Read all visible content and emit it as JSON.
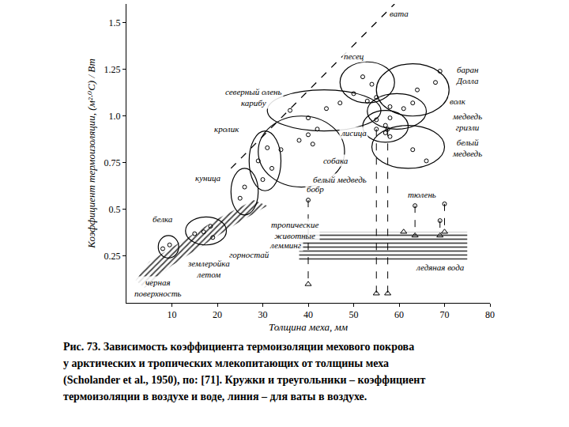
{
  "chart_data": {
    "type": "scatter",
    "x_label": "Толщина меха, мм",
    "y_label": "Коэффициент термоизоляции, (м²·⁰C) / Вт",
    "xlim": [
      0,
      80
    ],
    "ylim": [
      0,
      1.6
    ],
    "xticks": [
      10,
      20,
      30,
      40,
      50,
      60,
      70,
      80
    ],
    "yticks": [
      0.25,
      0.5,
      0.75,
      {
        "value": 1,
        "label": "1.0"
      },
      1.25,
      1.5
    ],
    "grid": false,
    "series": [
      {
        "marker": "circle",
        "color": "#000000",
        "x": [
          8,
          9.5,
          15,
          17,
          18.5,
          19,
          25,
          26,
          29,
          31,
          32,
          30,
          34,
          38,
          40,
          42,
          41,
          36,
          40,
          44,
          47,
          53,
          50,
          52,
          54,
          55,
          58,
          64,
          68,
          69,
          58,
          61,
          63,
          55,
          57,
          57,
          58,
          63,
          66,
          40,
          55,
          57.5,
          63.5,
          69,
          70
        ],
        "y": [
          0.29,
          0.31,
          0.37,
          0.38,
          0.41,
          0.35,
          0.56,
          0.62,
          0.76,
          0.83,
          0.72,
          0.66,
          0.82,
          0.87,
          0.9,
          0.93,
          0.85,
          1.03,
          0.99,
          1.04,
          1.07,
          1.08,
          1.12,
          1.21,
          1.17,
          1.1,
          1.05,
          1.14,
          1.18,
          1.24,
          0.99,
          1.04,
          1.07,
          0.98,
          0.95,
          0.91,
          0.89,
          0.82,
          0.76,
          0.55,
          0.93,
          0.93,
          0.52,
          0.44,
          0.53
        ]
      },
      {
        "marker": "triangle-up",
        "color": "#000000",
        "x": [
          40,
          55,
          57.5,
          61,
          63.5,
          69,
          70
        ],
        "y": [
          0.1,
          0.05,
          0.05,
          0.38,
          0.36,
          0.36,
          0.38
        ]
      }
    ],
    "line": {
      "line_style": "dash",
      "color": "#000000",
      "x": [
        23,
        59
      ],
      "y": [
        0.72,
        1.6
      ]
    },
    "links": [
      {
        "x": 40,
        "y": [
          0.55,
          0.1
        ]
      },
      {
        "x": 55,
        "y": [
          0.93,
          0.05
        ]
      },
      {
        "x": 57.5,
        "y": [
          0.93,
          0.05
        ]
      },
      {
        "x": 63.5,
        "y": [
          0.52,
          0.36
        ]
      },
      {
        "x": 69,
        "y": [
          0.44,
          0.36
        ]
      },
      {
        "x": 70,
        "y": [
          0.53,
          0.38
        ]
      }
    ],
    "regions": [
      {
        "x": [
          7,
          11.5
        ],
        "y": [
          0.24,
          0.36
        ]
      },
      {
        "x": [
          13,
          22
        ],
        "y": [
          0.31,
          0.46
        ]
      },
      {
        "x": [
          23,
          29
        ],
        "y": [
          0.47,
          0.72
        ]
      },
      {
        "x": [
          27,
          34
        ],
        "y": [
          0.6,
          0.92
        ]
      },
      {
        "x": [
          29,
          48
        ],
        "y": [
          0.62,
          1.0
        ]
      },
      {
        "x": [
          31,
          56
        ],
        "y": [
          0.92,
          1.14
        ]
      },
      {
        "x": [
          47,
          59
        ],
        "y": [
          1.07,
          1.29
        ]
      },
      {
        "x": [
          55,
          71
        ],
        "y": [
          1.0,
          1.28
        ]
      },
      {
        "x": [
          53,
          66
        ],
        "y": [
          0.93,
          1.12
        ]
      },
      {
        "x": [
          52,
          62
        ],
        "y": [
          0.86,
          1.03
        ]
      },
      {
        "x": [
          54,
          70
        ],
        "y": [
          0.72,
          0.95
        ]
      }
    ],
    "hatched": [
      {
        "x": [
          2,
          5,
          20,
          28,
          31,
          24,
          10,
          4,
          2
        ],
        "y": [
          0.12,
          0.22,
          0.45,
          0.55,
          0.52,
          0.42,
          0.2,
          0.08,
          0.12
        ]
      },
      {
        "x": [
          38,
          75,
          75,
          38,
          38
        ],
        "y": [
          0.23,
          0.23,
          0.38,
          0.38,
          0.23
        ]
      }
    ],
    "annotations": [
      {
        "text": "вата",
        "x": 60,
        "y": 1.55
      },
      {
        "text": "песец",
        "x": 50,
        "y": 1.32
      },
      {
        "text": "северный олень\nкарибу",
        "x": 28,
        "y": 1.1
      },
      {
        "text": "баран\nДолла",
        "x": 75,
        "y": 1.22
      },
      {
        "text": "волк",
        "x": 73,
        "y": 1.08
      },
      {
        "text": "кролик",
        "x": 22,
        "y": 0.93
      },
      {
        "text": "лисица",
        "x": 50,
        "y": 0.91
      },
      {
        "text": "медведь\nгризли",
        "x": 75,
        "y": 0.97
      },
      {
        "text": "белый\nмедведь",
        "x": 75,
        "y": 0.83
      },
      {
        "text": "собака",
        "x": 46,
        "y": 0.76
      },
      {
        "text": "куница",
        "x": 18,
        "y": 0.67
      },
      {
        "text": "белый медведь",
        "x": 47,
        "y": 0.66
      },
      {
        "text": "бобр",
        "x": 41.5,
        "y": 0.61
      },
      {
        "text": "тюлень",
        "x": 65,
        "y": 0.58
      },
      {
        "text": "белка",
        "x": 8,
        "y": 0.45
      },
      {
        "text": "тропические\nживотные",
        "x": 37,
        "y": 0.39
      },
      {
        "text": "лемминг",
        "x": 35,
        "y": 0.31
      },
      {
        "text": "горностай",
        "x": 27,
        "y": 0.26
      },
      {
        "text": "землеройка\nлетом",
        "x": 18,
        "y": 0.18
      },
      {
        "text": "черная\nповерхность",
        "x": 7,
        "y": 0.08
      },
      {
        "text": "ледяная вода",
        "x": 69,
        "y": 0.19
      }
    ],
    "caption": [
      "Рис. 73. Зависимость коэффициента термоизоляции мехового покрова",
      "у арктических и тропических млекопитающих от толщины меха",
      "(Scholander et al., 1950), по: [71]. Кружки и треугольники – коэффициент",
      "термоизоляции в воздухе и воде, линия – для ваты в воздухе."
    ]
  }
}
